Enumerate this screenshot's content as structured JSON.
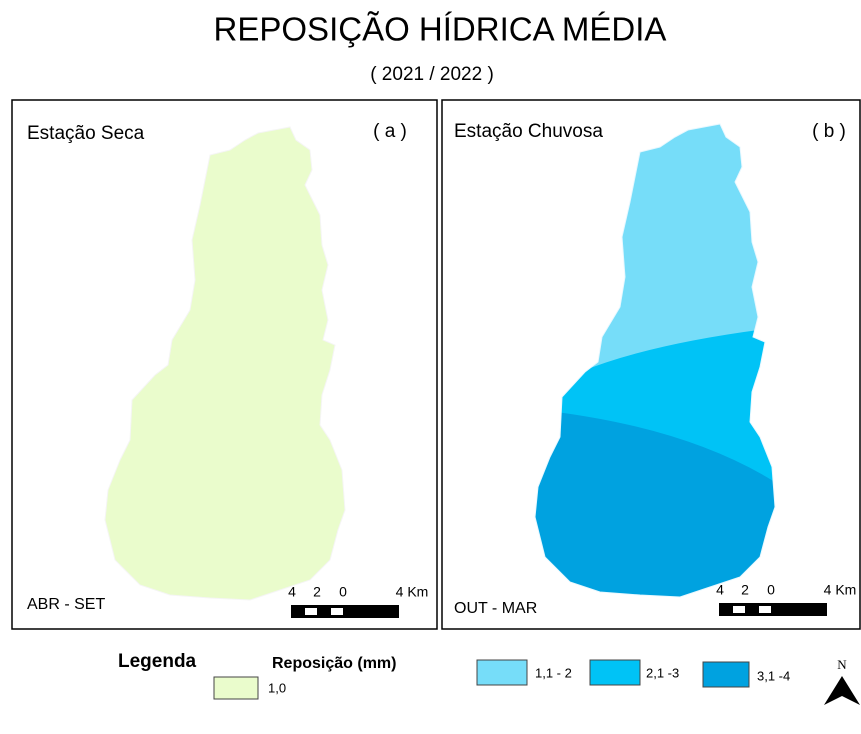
{
  "title": "REPOSIÇÃO HÍDRICA  MÉDIA",
  "subtitle": "( 2021 / 2022 )",
  "panels": [
    {
      "title": "Estação Seca",
      "label": "( a )",
      "period": "ABR - SET",
      "scale_labels": [
        "4",
        "2",
        "0",
        "4 Km"
      ]
    },
    {
      "title": "Estação Chuvosa",
      "label": "( b )",
      "period": "OUT -  MAR",
      "scale_labels": [
        "4",
        "2",
        "0",
        "4 Km"
      ]
    }
  ],
  "legend": {
    "title": "Legenda",
    "subtitle": "Reposição (mm)",
    "items": [
      {
        "label": "1,0",
        "color": "#eafccc"
      },
      {
        "label": "1,1 - 2",
        "color": "#76ddf9"
      },
      {
        "label": "2,1 -3",
        "color": "#00c3f6"
      },
      {
        "label": "3,1 -4",
        "color": "#00a2e0"
      }
    ]
  },
  "north": "N"
}
